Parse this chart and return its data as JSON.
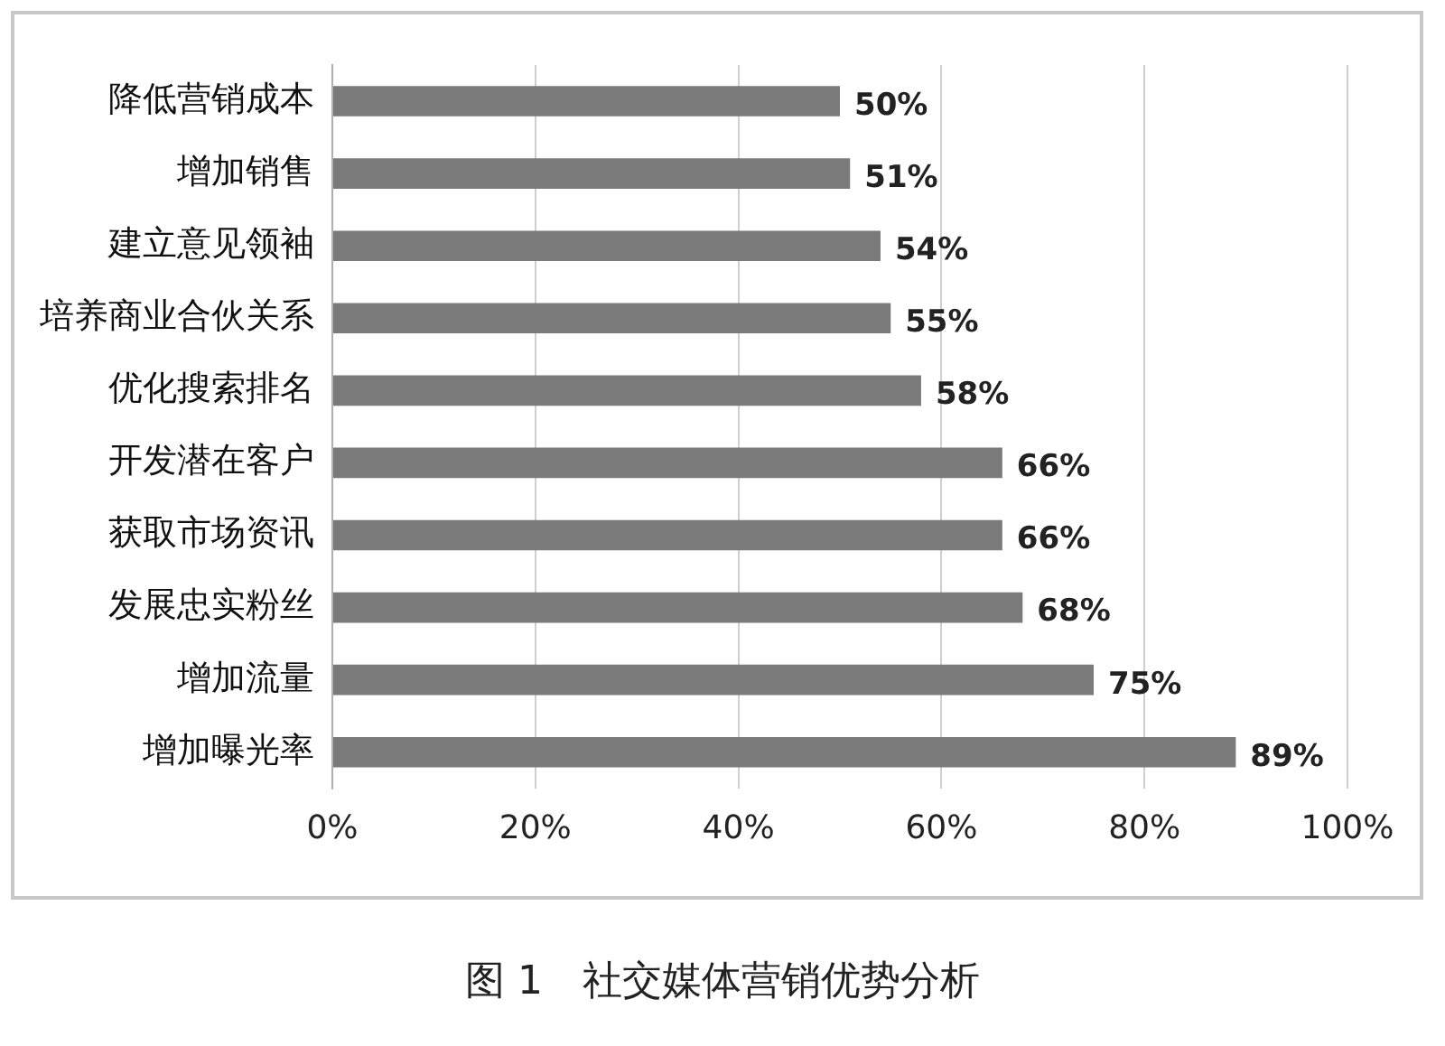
{
  "chart_data": {
    "type": "bar",
    "orientation": "horizontal",
    "title": "图 1　社交媒体营销优势分析",
    "categories": [
      "降低营销成本",
      "增加销售",
      "建立意见领袖",
      "培养商业合伙关系",
      "优化搜索排名",
      "开发潜在客户",
      "获取市场资讯",
      "发展忠实粉丝",
      "增加流量",
      "增加曝光率"
    ],
    "values": [
      50,
      51,
      54,
      55,
      58,
      66,
      66,
      68,
      75,
      89
    ],
    "value_labels": [
      "50%",
      "51%",
      "54%",
      "55%",
      "58%",
      "66%",
      "66%",
      "68%",
      "75%",
      "89%"
    ],
    "color": "#7a7a7a",
    "xlim": [
      0,
      100
    ],
    "xticks": [
      {
        "value": 0,
        "label": "0%"
      },
      {
        "value": 20,
        "label": "20%"
      },
      {
        "value": 40,
        "label": "40%"
      },
      {
        "value": 60,
        "label": "60%"
      },
      {
        "value": 80,
        "label": "80%"
      },
      {
        "value": 100,
        "label": "100%"
      }
    ],
    "grid": "x",
    "legend": false
  }
}
